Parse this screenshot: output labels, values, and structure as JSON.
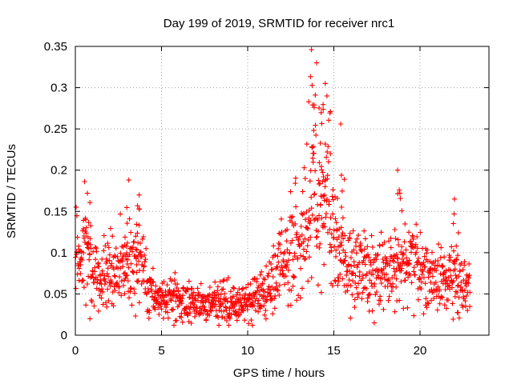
{
  "chart_data": {
    "type": "scatter",
    "title": "Day 199 of 2019, SRMTID for receiver nrc1",
    "xlabel": "GPS time / hours",
    "ylabel": "SRMTID / TECUs",
    "xlim": [
      0,
      24
    ],
    "ylim": [
      0,
      0.35
    ],
    "xticks": [
      0,
      5,
      10,
      15,
      20
    ],
    "yticks": [
      0,
      0.05,
      0.1,
      0.15,
      0.2,
      0.25,
      0.3,
      0.35
    ],
    "xtick_labels": [
      "0",
      "5",
      "10",
      "15",
      "20"
    ],
    "ytick_labels": [
      "0",
      "0.05",
      "0.1",
      "0.15",
      "0.2",
      "0.25",
      "0.3",
      "0.35"
    ],
    "grid": true,
    "marker": "plus",
    "color": "#ff0000",
    "series": [
      {
        "name": "SRMTID",
        "x_range": [
          0,
          22.9
        ],
        "sample_step_hours": 0.05,
        "approximate_values": [
          [
            0.0,
            0.085
          ],
          [
            0.3,
            0.095
          ],
          [
            0.6,
            0.11
          ],
          [
            0.9,
            0.08
          ],
          [
            1.2,
            0.07
          ],
          [
            1.5,
            0.065
          ],
          [
            1.8,
            0.08
          ],
          [
            2.1,
            0.075
          ],
          [
            2.4,
            0.07
          ],
          [
            2.7,
            0.085
          ],
          [
            3.0,
            0.08
          ],
          [
            3.3,
            0.09
          ],
          [
            3.6,
            0.095
          ],
          [
            3.9,
            0.085
          ],
          [
            4.2,
            0.06
          ],
          [
            4.5,
            0.05
          ],
          [
            4.8,
            0.045
          ],
          [
            5.1,
            0.05
          ],
          [
            5.4,
            0.045
          ],
          [
            5.7,
            0.045
          ],
          [
            6.0,
            0.04
          ],
          [
            6.5,
            0.04
          ],
          [
            7.0,
            0.038
          ],
          [
            7.5,
            0.036
          ],
          [
            8.0,
            0.04
          ],
          [
            8.5,
            0.038
          ],
          [
            9.0,
            0.04
          ],
          [
            9.5,
            0.035
          ],
          [
            10.0,
            0.04
          ],
          [
            10.5,
            0.05
          ],
          [
            11.0,
            0.055
          ],
          [
            11.5,
            0.07
          ],
          [
            12.0,
            0.085
          ],
          [
            12.5,
            0.1
          ],
          [
            13.0,
            0.12
          ],
          [
            13.5,
            0.14
          ],
          [
            13.8,
            0.17
          ],
          [
            14.0,
            0.16
          ],
          [
            14.3,
            0.15
          ],
          [
            14.6,
            0.155
          ],
          [
            15.0,
            0.11
          ],
          [
            15.5,
            0.09
          ],
          [
            16.0,
            0.08
          ],
          [
            16.5,
            0.085
          ],
          [
            17.0,
            0.08
          ],
          [
            17.5,
            0.075
          ],
          [
            18.0,
            0.08
          ],
          [
            18.5,
            0.085
          ],
          [
            19.0,
            0.08
          ],
          [
            19.5,
            0.09
          ],
          [
            20.0,
            0.08
          ],
          [
            20.5,
            0.075
          ],
          [
            21.0,
            0.065
          ],
          [
            21.5,
            0.065
          ],
          [
            22.0,
            0.07
          ],
          [
            22.5,
            0.06
          ],
          [
            22.9,
            0.055
          ]
        ],
        "peaks": [
          [
            0.7,
            0.172
          ],
          [
            3.1,
            0.188
          ],
          [
            3.7,
            0.17
          ],
          [
            13.7,
            0.346
          ],
          [
            14.0,
            0.33
          ],
          [
            14.5,
            0.305
          ],
          [
            14.6,
            0.29
          ],
          [
            15.4,
            0.256
          ],
          [
            18.7,
            0.2
          ],
          [
            22.0,
            0.165
          ]
        ]
      }
    ]
  }
}
